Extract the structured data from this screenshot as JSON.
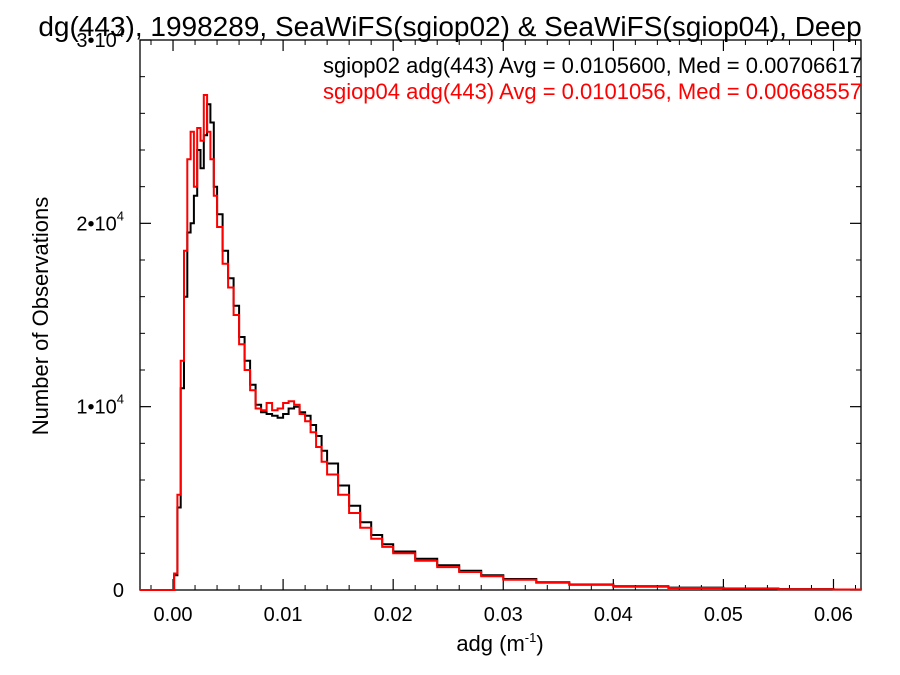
{
  "chart_data": {
    "type": "line",
    "title": "dg(443), 1998289, SeaWiFS(sgiop02) & SeaWiFS(sgiop04), Deep",
    "xlabel": "adg (m",
    "xlabel_sup": "-1",
    "xlabel_tail": ")",
    "ylabel": "Number of Observations",
    "xlim": [
      -0.003,
      0.0625
    ],
    "ylim": [
      0,
      30000
    ],
    "x_ticks": [
      {
        "value": 0.0,
        "label": "0.00"
      },
      {
        "value": 0.01,
        "label": "0.01"
      },
      {
        "value": 0.02,
        "label": "0.02"
      },
      {
        "value": 0.03,
        "label": "0.03"
      },
      {
        "value": 0.04,
        "label": "0.04"
      },
      {
        "value": 0.05,
        "label": "0.05"
      },
      {
        "value": 0.06,
        "label": "0.06"
      }
    ],
    "y_ticks": [
      {
        "value": 0,
        "base": "0",
        "exp": ""
      },
      {
        "value": 10000,
        "base": "1•10",
        "exp": "4"
      },
      {
        "value": 20000,
        "base": "2•10",
        "exp": "4"
      },
      {
        "value": 30000,
        "base": "3•10",
        "exp": "4"
      }
    ],
    "grid": false,
    "legend_position": "top-right",
    "series": [
      {
        "name": "sgiop02 adg(443) Avg = 0.0105600, Med = 0.00706617",
        "color": "#000000",
        "x": [
          -0.003,
          -0.0002,
          0.0001,
          0.0004,
          0.0007,
          0.001,
          0.0013,
          0.0016,
          0.0019,
          0.0022,
          0.0025,
          0.0028,
          0.0031,
          0.0034,
          0.0037,
          0.004,
          0.0045,
          0.005,
          0.0055,
          0.006,
          0.0065,
          0.007,
          0.0075,
          0.008,
          0.0085,
          0.009,
          0.0095,
          0.01,
          0.0105,
          0.011,
          0.0115,
          0.012,
          0.0125,
          0.013,
          0.0135,
          0.014,
          0.015,
          0.016,
          0.017,
          0.018,
          0.019,
          0.02,
          0.022,
          0.024,
          0.026,
          0.028,
          0.03,
          0.033,
          0.036,
          0.04,
          0.045,
          0.05,
          0.055,
          0.06,
          0.0625
        ],
        "y": [
          0,
          0,
          800,
          4500,
          11000,
          16000,
          19500,
          20000,
          21500,
          24000,
          23000,
          24800,
          26500,
          25500,
          22000,
          20500,
          18500,
          17000,
          15500,
          13800,
          12500,
          11200,
          10100,
          9700,
          9600,
          9500,
          9400,
          9600,
          9900,
          10000,
          9700,
          9500,
          9000,
          8400,
          7600,
          6900,
          5700,
          4600,
          3700,
          3000,
          2500,
          2100,
          1700,
          1350,
          1050,
          800,
          600,
          420,
          300,
          200,
          130,
          80,
          50,
          30,
          25
        ]
      },
      {
        "name": "sgiop04 adg(443) Avg = 0.0101056, Med = 0.00668557",
        "color": "#ff0000",
        "x": [
          -0.003,
          -0.0002,
          0.0001,
          0.0004,
          0.0007,
          0.001,
          0.0013,
          0.0016,
          0.0019,
          0.0022,
          0.0025,
          0.0028,
          0.0031,
          0.0034,
          0.0037,
          0.004,
          0.0045,
          0.005,
          0.0055,
          0.006,
          0.0065,
          0.007,
          0.0075,
          0.008,
          0.0085,
          0.009,
          0.0095,
          0.01,
          0.0105,
          0.011,
          0.0115,
          0.012,
          0.0125,
          0.013,
          0.0135,
          0.014,
          0.015,
          0.016,
          0.017,
          0.018,
          0.019,
          0.02,
          0.022,
          0.024,
          0.026,
          0.028,
          0.03,
          0.033,
          0.036,
          0.04,
          0.045,
          0.05,
          0.055,
          0.06,
          0.0625
        ],
        "y": [
          0,
          0,
          900,
          5200,
          12500,
          18500,
          23500,
          25000,
          22000,
          25200,
          24500,
          27000,
          25000,
          23500,
          21500,
          19800,
          17800,
          16500,
          15000,
          13400,
          12000,
          10900,
          9900,
          9800,
          10200,
          9800,
          9900,
          10200,
          10300,
          10100,
          9600,
          9200,
          8600,
          7800,
          7000,
          6300,
          5200,
          4200,
          3400,
          2800,
          2350,
          2000,
          1600,
          1250,
          980,
          750,
          560,
          400,
          280,
          180,
          110,
          70,
          45,
          25,
          20
        ]
      }
    ]
  }
}
